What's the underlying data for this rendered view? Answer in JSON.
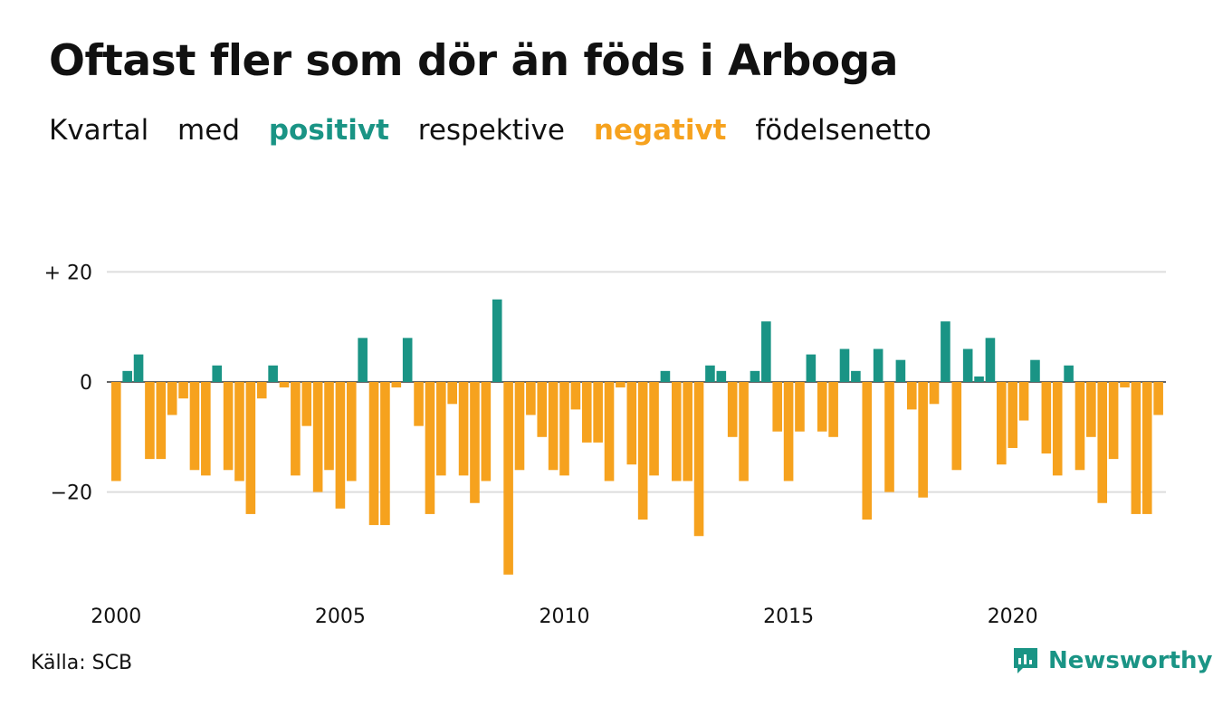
{
  "title": "Oftast fler som dör än föds i Arboga",
  "subtitle": {
    "w1": "Kvartal",
    "w2": "med",
    "positive": "positivt",
    "w3": "respektive",
    "negative": "negativt",
    "w4": "födelsenetto"
  },
  "source": "Källa: SCB",
  "brand": "Newsworthy",
  "colors": {
    "positive": "#1a9485",
    "negative": "#f6a21e",
    "grid": "#dddddd",
    "text": "#111111"
  },
  "chart_data": {
    "type": "bar",
    "title": "Oftast fler som dör än föds i Arboga",
    "x_start": "2000 Q1",
    "xticks": [
      2000,
      2005,
      2010,
      2015,
      2020
    ],
    "ylim": [
      -35,
      20
    ],
    "yticks": [
      {
        "value": 20,
        "label": "+ 20"
      },
      {
        "value": 0,
        "label": "0"
      },
      {
        "value": -20,
        "label": "−20"
      }
    ],
    "grid": true,
    "values": [
      -18,
      2,
      5,
      -14,
      -14,
      -6,
      -3,
      -16,
      -17,
      3,
      -16,
      -18,
      -24,
      -3,
      3,
      -1,
      -17,
      -8,
      -20,
      -16,
      -23,
      -18,
      8,
      -26,
      -26,
      -1,
      8,
      -8,
      -24,
      -17,
      -4,
      -17,
      -22,
      -18,
      15,
      -35,
      -16,
      -6,
      -10,
      -16,
      -17,
      -5,
      -11,
      -11,
      -18,
      -1,
      -15,
      -25,
      -17,
      2,
      -18,
      -18,
      -28,
      3,
      2,
      -10,
      -18,
      2,
      11,
      -9,
      -18,
      -9,
      5,
      -9,
      -10,
      6,
      2,
      -25,
      6,
      -20,
      4,
      -5,
      -21,
      -4,
      11,
      -16,
      6,
      1,
      8,
      -15,
      -12,
      -7,
      4,
      -13,
      -17,
      3,
      -16,
      -10,
      -22,
      -14,
      -1,
      -24,
      -24,
      -6
    ]
  }
}
